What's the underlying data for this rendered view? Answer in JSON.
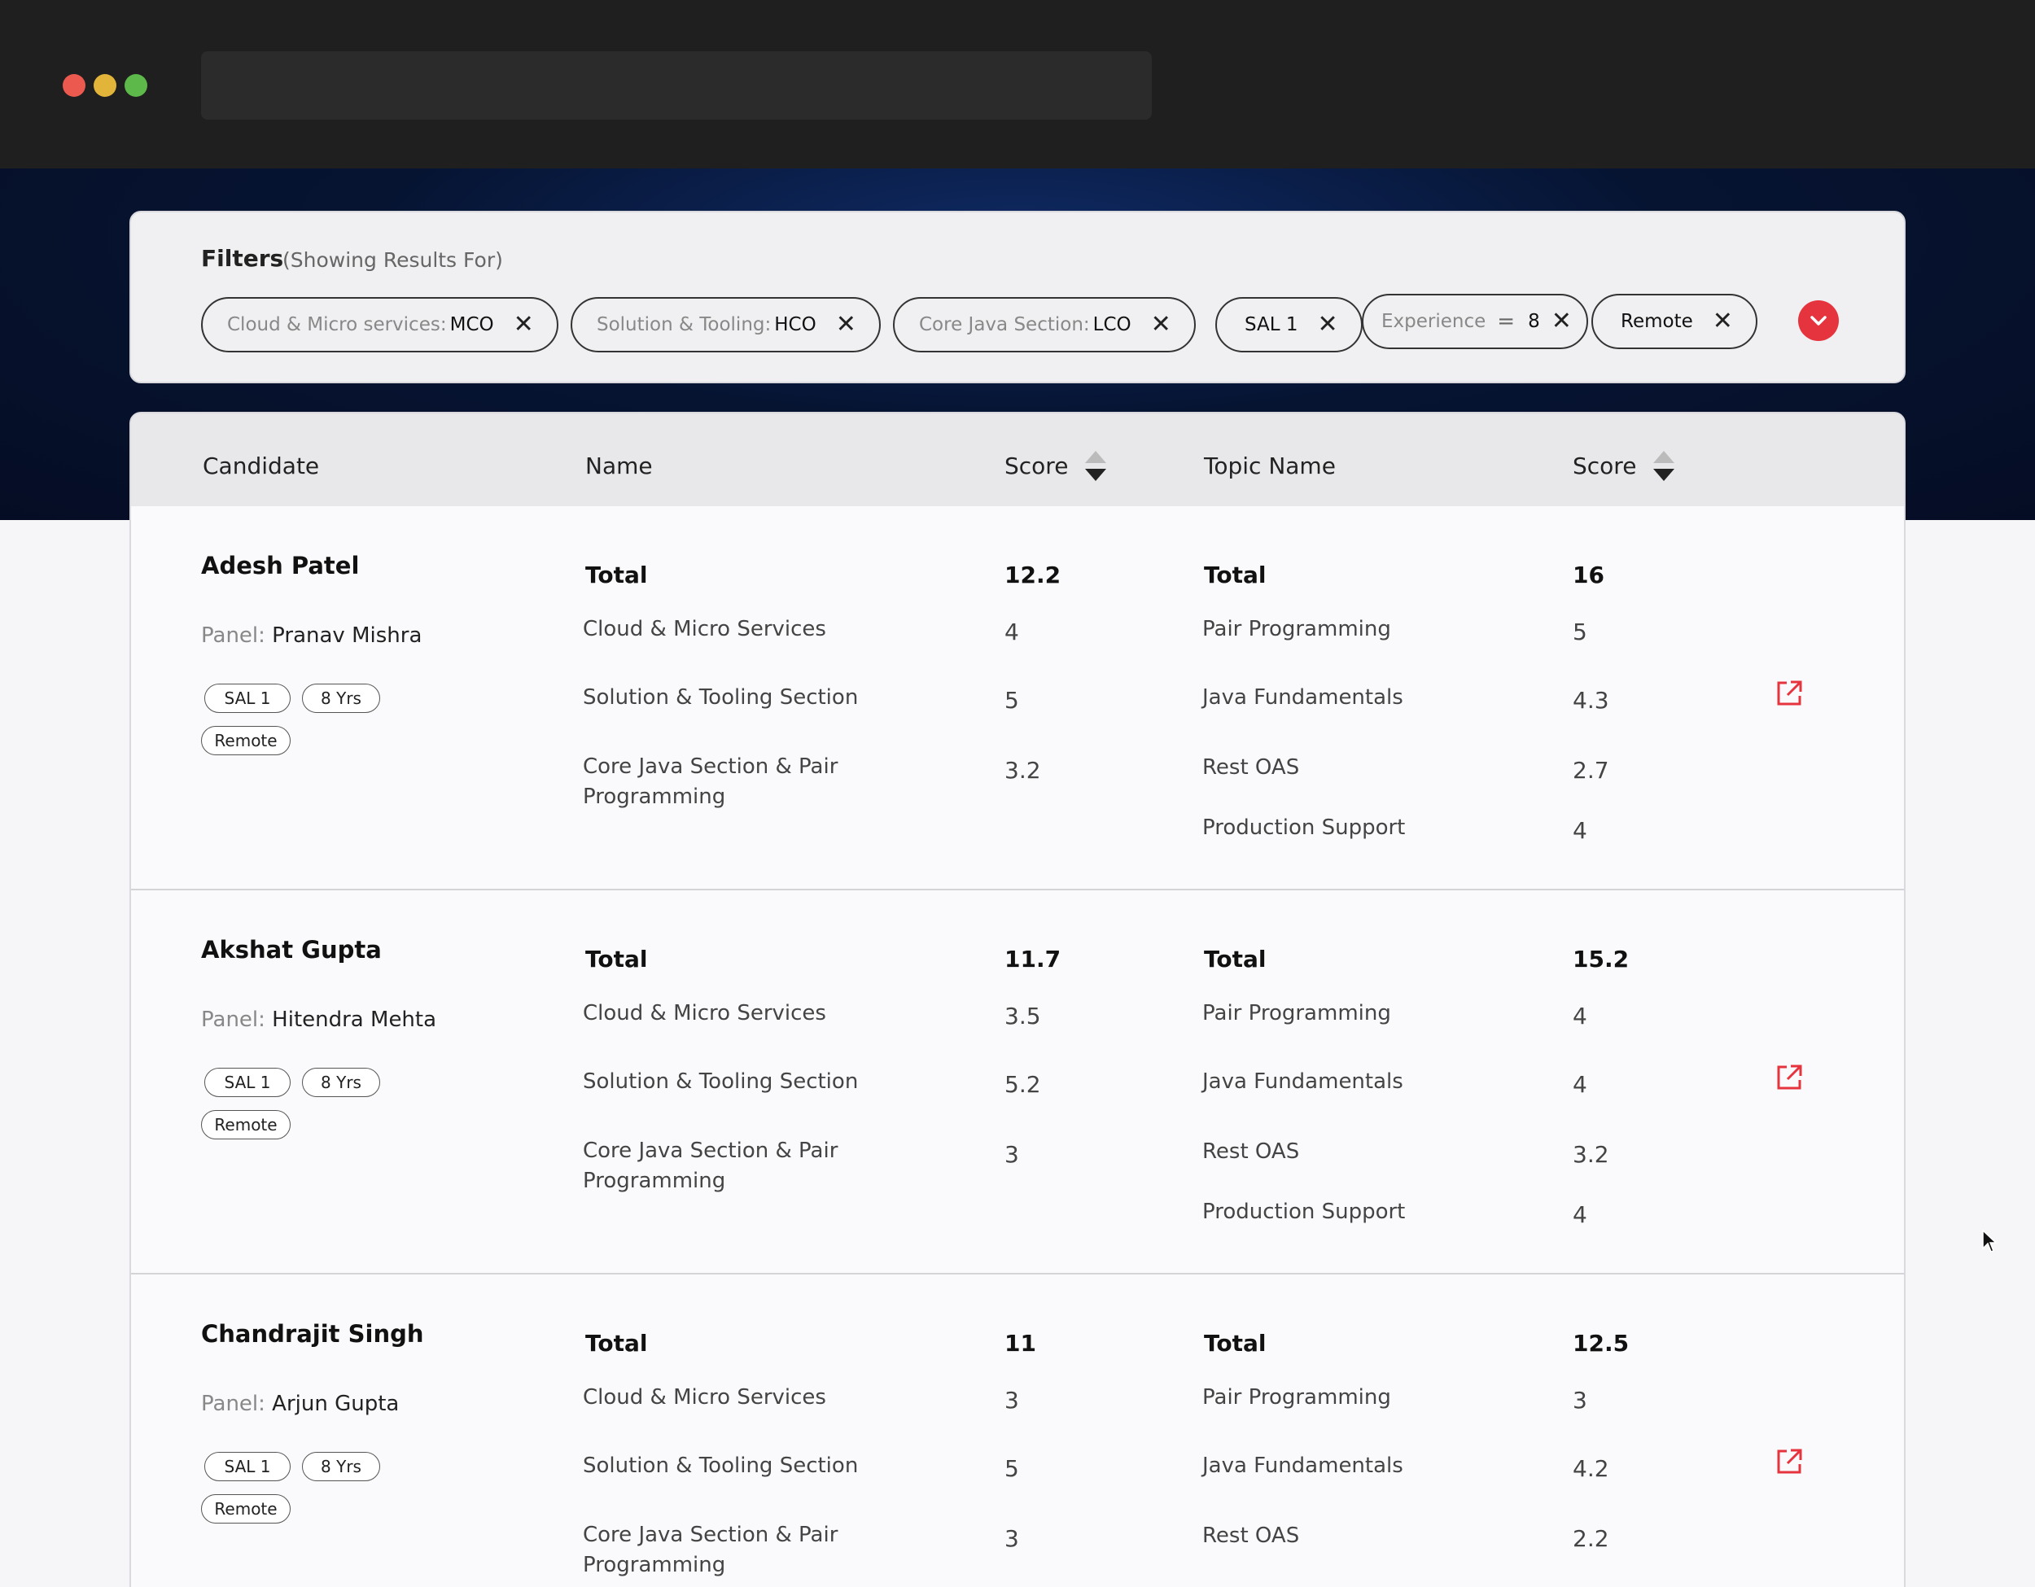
{
  "filters": {
    "title": "Filters",
    "subtitle": "(Showing Results For)",
    "chips": [
      {
        "label": "Cloud & Micro services:",
        "value": "MCO"
      },
      {
        "label": "Solution & Tooling:",
        "value": "HCO"
      },
      {
        "label": "Core Java Section:",
        "value": "LCO"
      },
      {
        "label": "",
        "value": "SAL 1"
      },
      {
        "label": "Experience",
        "op": "=",
        "value": "8"
      },
      {
        "label": "",
        "value": "Remote"
      }
    ],
    "close_glyph": "✕"
  },
  "table": {
    "headers": {
      "candidate": "Candidate",
      "name": "Name",
      "score": "Score",
      "topic_name": "Topic Name",
      "topic_score": "Score"
    },
    "panel_label": "Panel:",
    "total_label": "Total",
    "rows": [
      {
        "candidate": "Adesh Patel",
        "panel": "Pranav Mishra",
        "tags": [
          "SAL 1",
          "8 Yrs",
          "Remote"
        ],
        "sections_total": "12.2",
        "sections": [
          {
            "name": "Cloud & Micro Services",
            "score": "4"
          },
          {
            "name": "Solution & Tooling Section",
            "score": "5"
          },
          {
            "name": "Core Java Section & Pair Programming",
            "score": "3.2"
          }
        ],
        "topics_total": "16",
        "topics": [
          {
            "name": "Pair Programming",
            "score": "5"
          },
          {
            "name": "Java Fundamentals",
            "score": "4.3"
          },
          {
            "name": "Rest OAS",
            "score": "2.7"
          },
          {
            "name": "Production Support",
            "score": "4"
          }
        ]
      },
      {
        "candidate": "Akshat Gupta",
        "panel": "Hitendra Mehta",
        "tags": [
          "SAL 1",
          "8 Yrs",
          "Remote"
        ],
        "sections_total": "11.7",
        "sections": [
          {
            "name": "Cloud & Micro Services",
            "score": "3.5"
          },
          {
            "name": "Solution & Tooling Section",
            "score": "5.2"
          },
          {
            "name": "Core Java Section & Pair Programming",
            "score": "3"
          }
        ],
        "topics_total": "15.2",
        "topics": [
          {
            "name": "Pair Programming",
            "score": "4"
          },
          {
            "name": "Java Fundamentals",
            "score": "4"
          },
          {
            "name": "Rest OAS",
            "score": "3.2"
          },
          {
            "name": "Production Support",
            "score": "4"
          }
        ]
      },
      {
        "candidate": "Chandrajit Singh",
        "panel": "Arjun Gupta",
        "tags": [
          "SAL 1",
          "8 Yrs",
          "Remote"
        ],
        "sections_total": "11",
        "sections": [
          {
            "name": "Cloud & Micro Services",
            "score": "3"
          },
          {
            "name": "Solution & Tooling Section",
            "score": "5"
          },
          {
            "name": "Core Java Section & Pair Programming",
            "score": "3"
          }
        ],
        "topics_total": "12.5",
        "topics": [
          {
            "name": "Pair Programming",
            "score": "3"
          },
          {
            "name": "Java Fundamentals",
            "score": "4.2"
          },
          {
            "name": "Rest OAS",
            "score": "2.2"
          }
        ]
      }
    ]
  },
  "colors": {
    "accent": "#e6343f",
    "banner": "#061432",
    "chrome": "#1f1f1f"
  },
  "icons": {
    "expand": "chevron-down-icon",
    "open": "external-link-icon",
    "remove": "close-icon",
    "sort": "sort-icon"
  }
}
